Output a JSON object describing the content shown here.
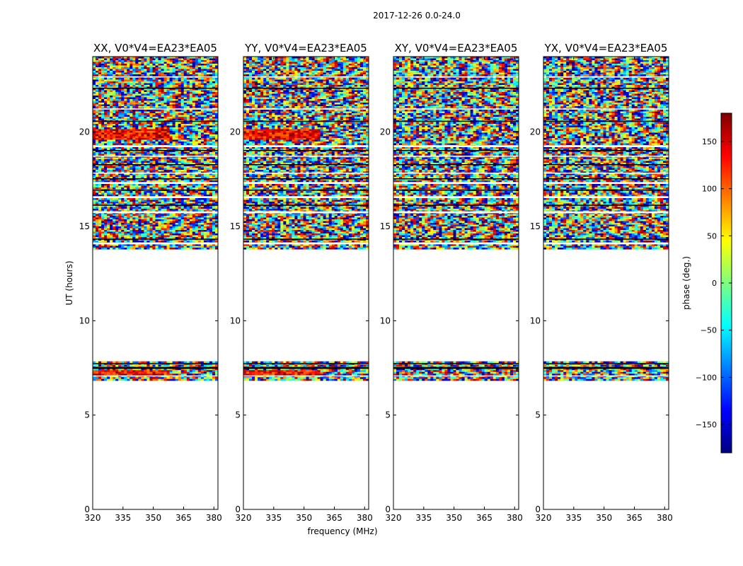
{
  "figure_title": "2017-12-26 0.0-24.0",
  "chart_data": {
    "type": "heatmap",
    "title": "2017-12-26 0.0-24.0",
    "xlabel": "frequency (MHz)",
    "ylabel": "UT (hours)",
    "xlim": [
      320,
      382
    ],
    "ylim": [
      0,
      24
    ],
    "xticks": [
      320,
      335,
      350,
      365,
      380
    ],
    "yticks": [
      0,
      5,
      10,
      15,
      20
    ],
    "colorbar": {
      "label": "phase (deg.)",
      "range": [
        -180,
        180
      ],
      "ticks": [
        150,
        100,
        50,
        0,
        -50,
        -100,
        -150
      ],
      "tick_labels": [
        "150",
        "100",
        "50",
        "0",
        "−50",
        "−100",
        "−150"
      ],
      "colormap": "jet",
      "colors": [
        "#00007f",
        "#0000ff",
        "#007fff",
        "#00ffff",
        "#7fff7f",
        "#ffff00",
        "#ff7f00",
        "#ff0000",
        "#7f0000"
      ]
    },
    "panels": [
      {
        "title": "XX, V0*V4=EA23*EA05",
        "ylabel": "UT (hours)",
        "xlabel": ""
      },
      {
        "title": "YY, V0*V4=EA23*EA05",
        "ylabel": "",
        "xlabel": "frequency (MHz)"
      },
      {
        "title": "XY, V0*V4=EA23*EA05",
        "ylabel": "",
        "xlabel": ""
      },
      {
        "title": "YX, V0*V4=EA23*EA05",
        "ylabel": "",
        "xlabel": ""
      }
    ],
    "data_blocks_ut": [
      {
        "start": 6.9,
        "end": 7.85
      },
      {
        "start": 13.8,
        "end": 24.0
      }
    ],
    "flagged_gaps_ut": [
      [
        7.45,
        7.55
      ],
      [
        7.05,
        7.1
      ],
      [
        7.7,
        7.75
      ],
      [
        14.05,
        14.15
      ],
      [
        14.3,
        14.35
      ],
      [
        15.7,
        15.8
      ],
      [
        16.1,
        16.15
      ],
      [
        16.5,
        16.6
      ],
      [
        16.9,
        16.95
      ],
      [
        17.25,
        17.35
      ],
      [
        17.5,
        17.55
      ],
      [
        17.8,
        17.85
      ],
      [
        18.25,
        18.3
      ],
      [
        18.7,
        18.75
      ],
      [
        19.0,
        19.05
      ],
      [
        19.2,
        19.3
      ],
      [
        20.55,
        20.6
      ],
      [
        21.2,
        21.25
      ],
      [
        22.3,
        22.35
      ],
      [
        22.9,
        22.95
      ]
    ]
  }
}
